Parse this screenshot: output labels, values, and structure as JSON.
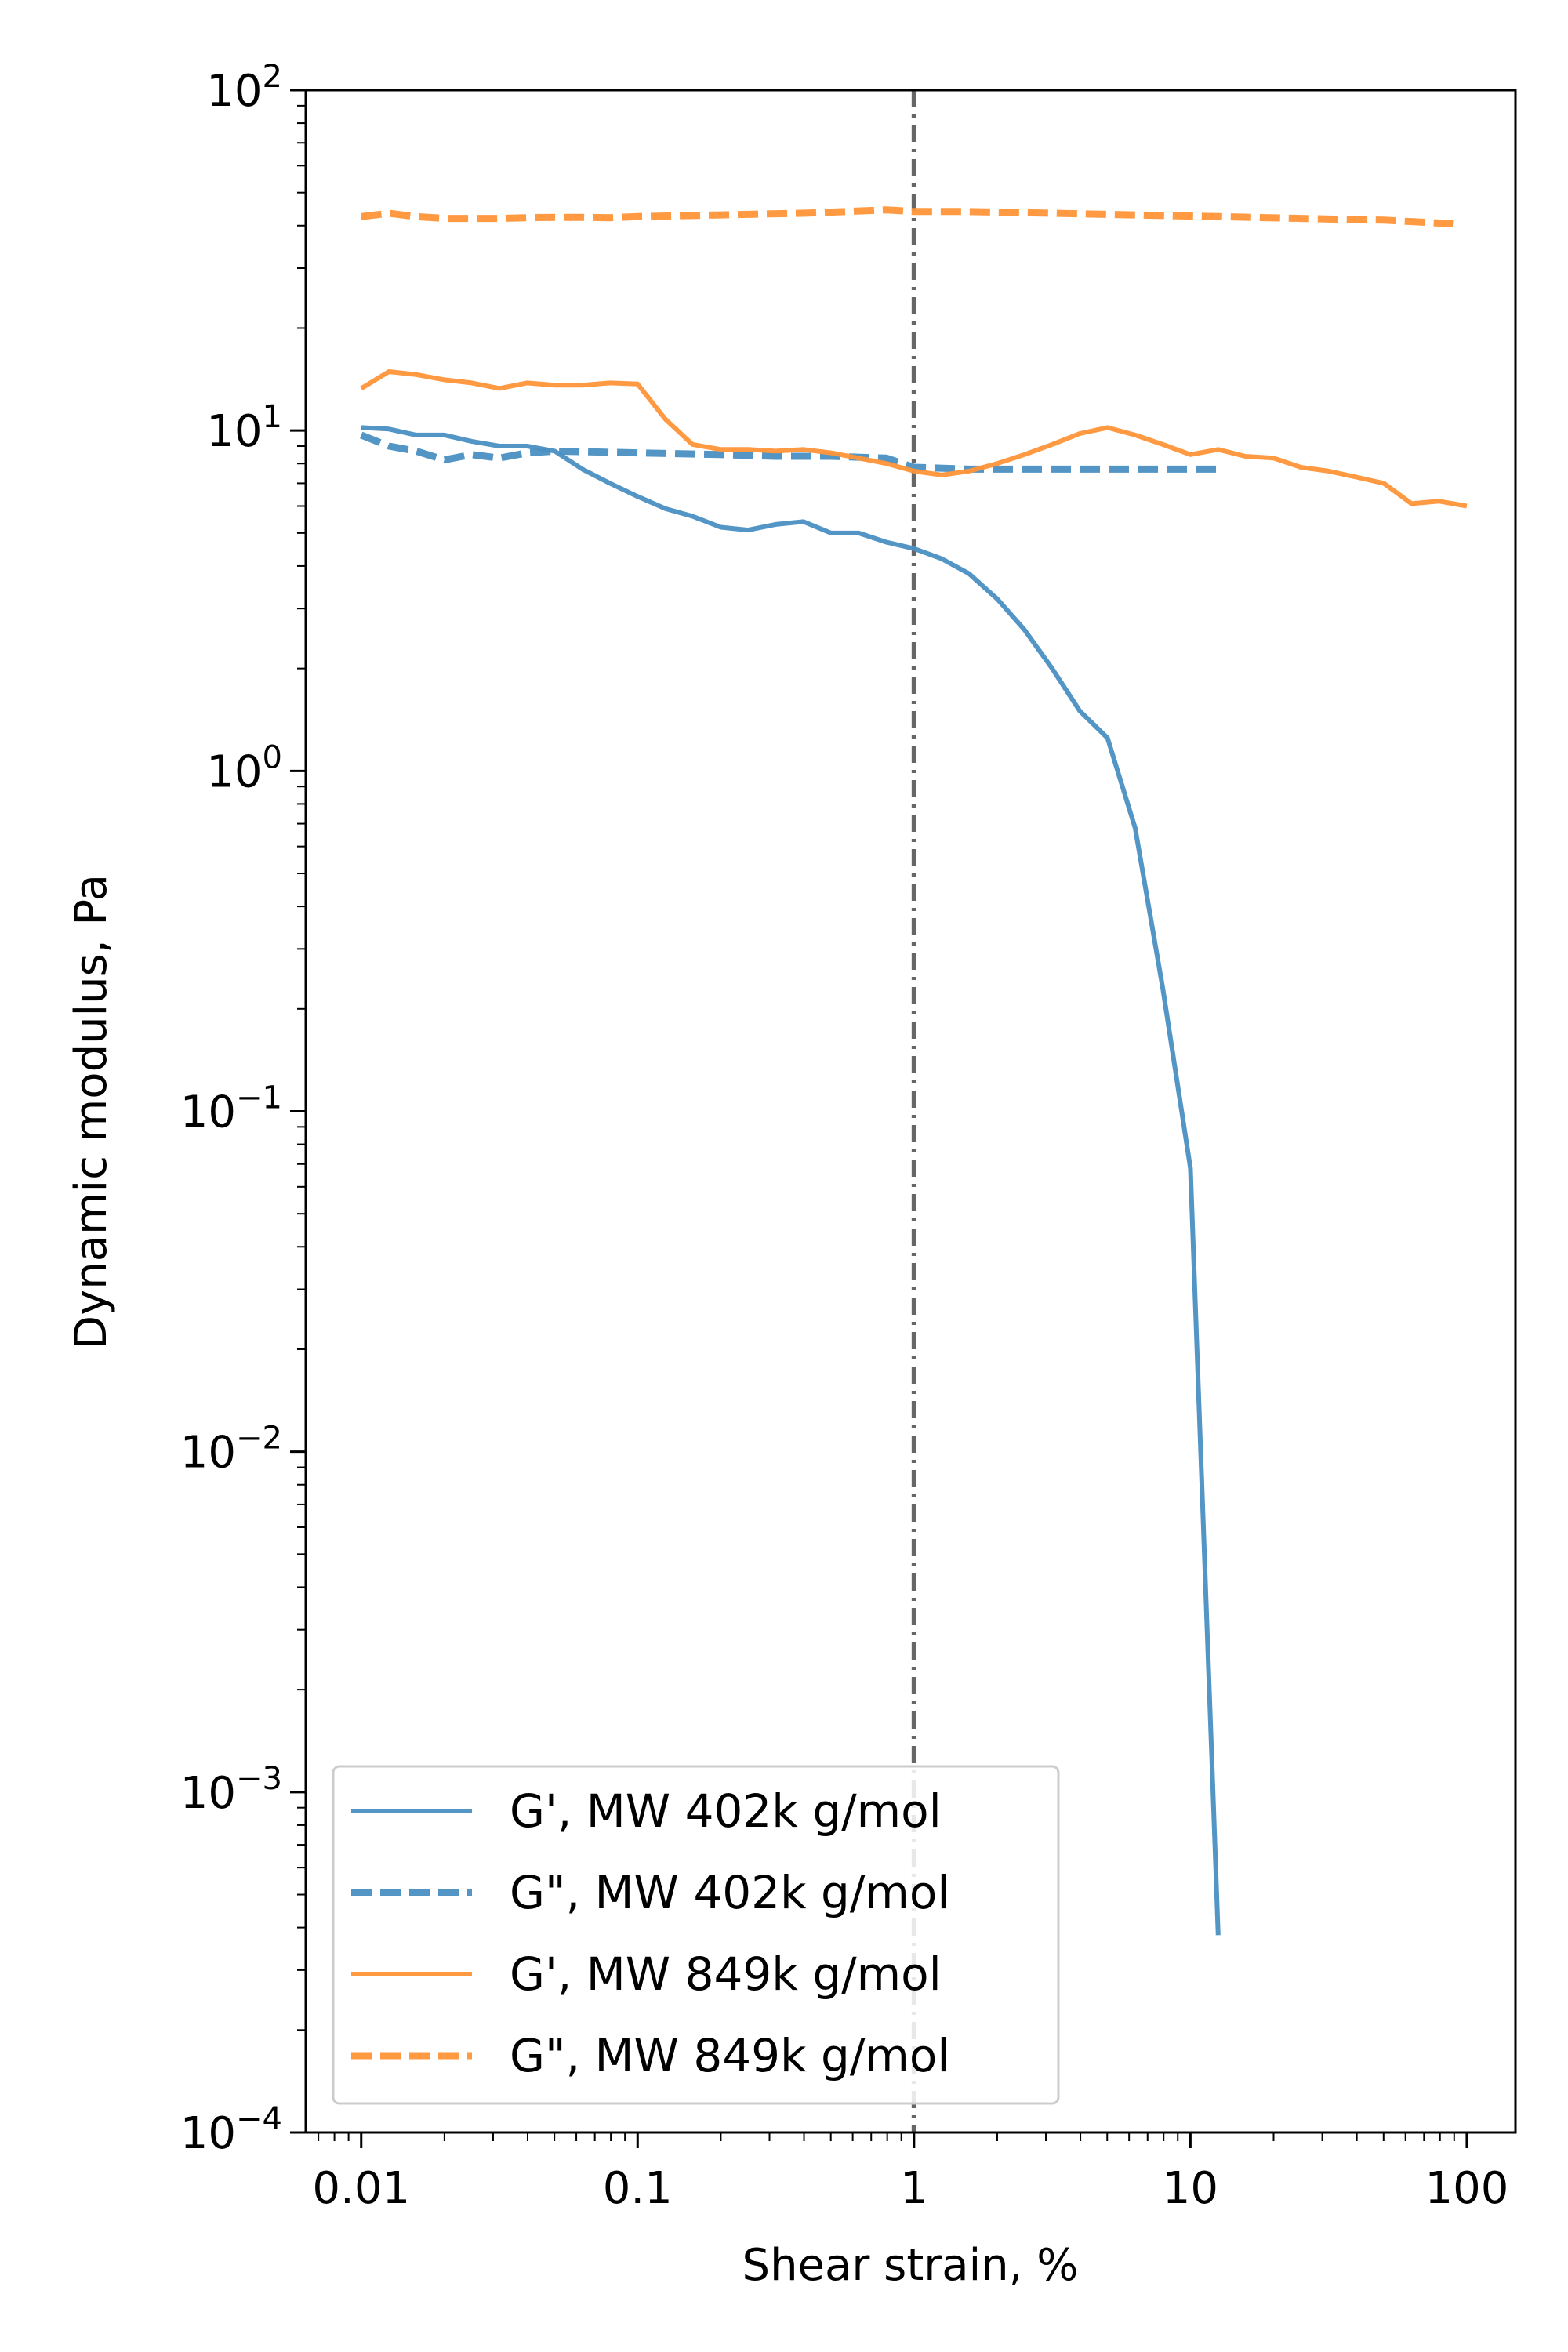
{
  "chart_data": {
    "type": "line",
    "xlabel": "Shear strain, %",
    "ylabel": "Dynamic modulus, Pa",
    "x_scale": "log",
    "y_scale": "log",
    "xlim": [
      0.0063,
      150
    ],
    "ylim": [
      0.0001,
      100
    ],
    "x_ticks": [
      {
        "value": 0.01,
        "label": "0.01"
      },
      {
        "value": 0.1,
        "label": "0.1"
      },
      {
        "value": 1,
        "label": "1"
      },
      {
        "value": 10,
        "label": "10"
      },
      {
        "value": 100,
        "label": "100"
      }
    ],
    "y_ticks": [
      {
        "value": 0.0001,
        "base": "10",
        "exp": "−4"
      },
      {
        "value": 0.001,
        "base": "10",
        "exp": "−3"
      },
      {
        "value": 0.01,
        "base": "10",
        "exp": "−2"
      },
      {
        "value": 0.1,
        "base": "10",
        "exp": "−1"
      },
      {
        "value": 1,
        "base": "10",
        "exp": "0"
      },
      {
        "value": 10,
        "base": "10",
        "exp": "1"
      },
      {
        "value": 100,
        "base": "10",
        "exp": "2"
      }
    ],
    "vline": {
      "x": 1,
      "color": "#666666",
      "style": "dashdot"
    },
    "grid": false,
    "legend_position": "lower-left",
    "series": [
      {
        "name": "G', MW 402k g/mol",
        "color": "#4a8fc2",
        "style": "solid",
        "x": [
          0.01,
          0.0126,
          0.0158,
          0.02,
          0.0251,
          0.0316,
          0.0398,
          0.0501,
          0.0631,
          0.0794,
          0.1,
          0.126,
          0.158,
          0.2,
          0.251,
          0.316,
          0.398,
          0.501,
          0.631,
          0.794,
          1,
          1.26,
          1.58,
          2,
          2.51,
          3.16,
          3.98,
          5.01,
          6.31,
          7.94,
          10,
          12.6
        ],
        "values": [
          10.2,
          10.1,
          9.7,
          9.7,
          9.3,
          9.0,
          9.0,
          8.7,
          7.7,
          7.0,
          6.4,
          5.9,
          5.6,
          5.2,
          5.1,
          5.3,
          5.4,
          5.0,
          5.0,
          4.7,
          4.5,
          4.2,
          3.8,
          3.2,
          2.6,
          2.0,
          1.5,
          1.25,
          0.68,
          0.23,
          0.068,
          0.00038
        ]
      },
      {
        "name": "G\", MW 402k g/mol",
        "color": "#4a8fc2",
        "style": "dashed",
        "x": [
          0.01,
          0.0126,
          0.0158,
          0.02,
          0.0251,
          0.0316,
          0.0398,
          0.0501,
          0.1,
          0.2,
          0.316,
          0.501,
          0.794,
          1,
          1.58,
          2.51,
          3.98,
          6.31,
          10,
          12.6
        ],
        "values": [
          9.7,
          9.0,
          8.7,
          8.2,
          8.5,
          8.3,
          8.6,
          8.7,
          8.6,
          8.5,
          8.4,
          8.4,
          8.3,
          7.8,
          7.7,
          7.7,
          7.7,
          7.7,
          7.7,
          7.7
        ]
      },
      {
        "name": "G', MW 849k g/mol",
        "color": "#ff9438",
        "style": "solid",
        "x": [
          0.01,
          0.0126,
          0.0158,
          0.02,
          0.0251,
          0.0316,
          0.0398,
          0.0501,
          0.0631,
          0.0794,
          0.1,
          0.126,
          0.158,
          0.2,
          0.251,
          0.316,
          0.398,
          0.501,
          0.631,
          0.794,
          1,
          1.26,
          1.58,
          2,
          2.51,
          3.16,
          3.98,
          5.01,
          6.31,
          7.94,
          10,
          12.6,
          15.8,
          20,
          25.1,
          31.6,
          39.8,
          50.1,
          63.1,
          79.4,
          100
        ],
        "values": [
          13.3,
          14.9,
          14.6,
          14.1,
          13.8,
          13.3,
          13.8,
          13.6,
          13.6,
          13.8,
          13.7,
          10.8,
          9.1,
          8.8,
          8.8,
          8.7,
          8.8,
          8.6,
          8.3,
          8.0,
          7.6,
          7.4,
          7.6,
          8.0,
          8.5,
          9.1,
          9.8,
          10.2,
          9.7,
          9.1,
          8.5,
          8.8,
          8.4,
          8.3,
          7.8,
          7.6,
          7.3,
          7.0,
          6.1,
          6.2,
          6.0
        ]
      },
      {
        "name": "G\", MW 849k g/mol",
        "color": "#ff9438",
        "style": "dashed",
        "x": [
          0.01,
          0.0126,
          0.0158,
          0.02,
          0.0251,
          0.0316,
          0.0398,
          0.0501,
          0.0631,
          0.0794,
          0.1,
          0.2,
          0.398,
          0.794,
          1,
          1.58,
          3.16,
          6.31,
          12.6,
          25.1,
          50.1,
          89.1
        ],
        "values": [
          42.5,
          43.5,
          42.5,
          42.0,
          42.0,
          42.0,
          42.2,
          42.3,
          42.3,
          42.2,
          42.5,
          43.0,
          43.5,
          44.5,
          44.0,
          44.0,
          43.5,
          43.0,
          42.5,
          42.0,
          41.5,
          40.5
        ]
      }
    ]
  }
}
